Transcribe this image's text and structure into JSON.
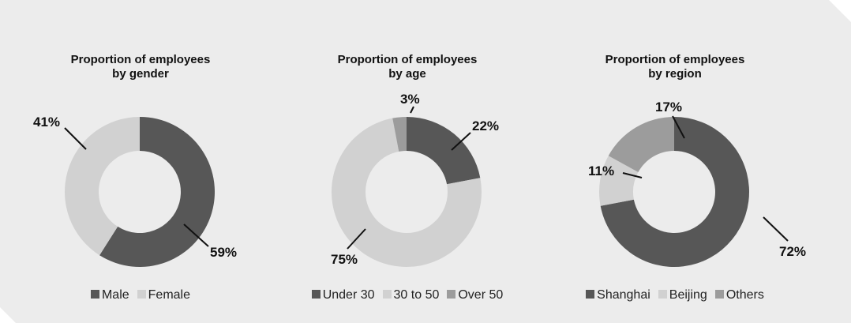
{
  "colors": {
    "panel": "#ececec",
    "dark": "#575757",
    "light": "#d1d1d1",
    "mid": "#9c9c9c"
  },
  "chart_data": [
    {
      "type": "pie",
      "title": [
        "Proportion of employees",
        "by gender"
      ],
      "categories": [
        "Male",
        "Female"
      ],
      "values": [
        59,
        41
      ],
      "labels": [
        "59%",
        "41%"
      ],
      "colors": [
        "#575757",
        "#d1d1d1"
      ],
      "donut": true,
      "legend_position": "bottom"
    },
    {
      "type": "pie",
      "title": [
        "Proportion of employees",
        "by age"
      ],
      "categories": [
        "Under 30",
        "30 to 50",
        "Over 50"
      ],
      "values": [
        22,
        75,
        3
      ],
      "labels": [
        "22%",
        "75%",
        "3%"
      ],
      "colors": [
        "#575757",
        "#d1d1d1",
        "#9c9c9c"
      ],
      "donut": true,
      "legend_position": "bottom"
    },
    {
      "type": "pie",
      "title": [
        "Proportion of employees",
        "by region"
      ],
      "categories": [
        "Shanghai",
        "Beijing",
        "Others"
      ],
      "values": [
        72,
        11,
        17
      ],
      "labels": [
        "72%",
        "11%",
        "17%"
      ],
      "colors": [
        "#575757",
        "#d1d1d1",
        "#9c9c9c"
      ],
      "donut": true,
      "legend_position": "bottom"
    }
  ]
}
